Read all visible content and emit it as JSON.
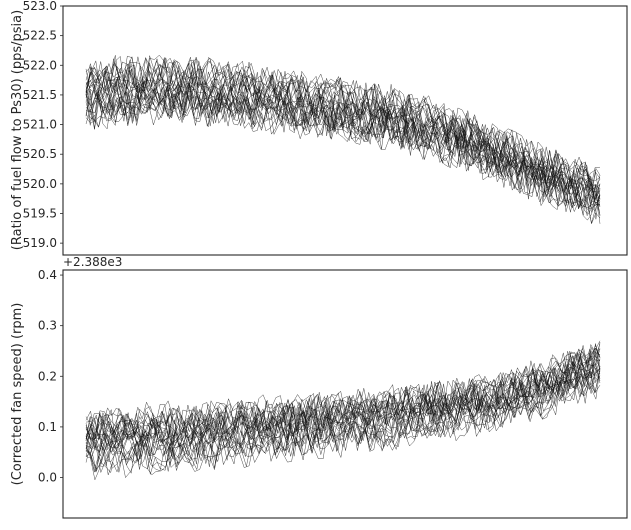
{
  "chart_data": [
    {
      "type": "line",
      "title": "",
      "xlabel": "",
      "ylabel": "(Ratio of fuel flow to Ps30) (pps/psia)",
      "ylim": [
        518.8,
        523.0
      ],
      "yticks": [
        519.0,
        519.5,
        520.0,
        520.5,
        521.0,
        521.5,
        522.0,
        522.5,
        523.0
      ],
      "ytick_labels": [
        "519.0",
        "519.5",
        "520.0",
        "520.5",
        "521.0",
        "521.5",
        "522.0",
        "522.5",
        "523.0"
      ],
      "offset_text": "",
      "x_tick_labels_visible": false,
      "grid": false,
      "legend": "none",
      "line_color": "#111111",
      "series_count": 30,
      "points_per_series": 128,
      "trend": {
        "x": [
          0,
          0.15,
          0.3,
          0.45,
          0.6,
          0.75,
          0.9,
          1.0
        ],
        "y": [
          521.5,
          521.6,
          521.5,
          521.3,
          521.1,
          520.7,
          520.1,
          519.8
        ]
      },
      "start_spread": 0.35,
      "noise": 0.32,
      "seed": 7
    },
    {
      "type": "line",
      "title": "",
      "xlabel": "",
      "ylabel": "(Corrected fan speed) (rpm)",
      "ylim": [
        -0.08,
        0.41
      ],
      "yticks": [
        0.0,
        0.1,
        0.2,
        0.3,
        0.4
      ],
      "ytick_labels": [
        "0.0",
        "0.1",
        "0.2",
        "0.3",
        "0.4"
      ],
      "offset_text": "+2.388e3",
      "x_tick_labels_visible": false,
      "grid": false,
      "legend": "none",
      "line_color": "#111111",
      "series_count": 30,
      "points_per_series": 128,
      "trend": {
        "x": [
          0,
          0.2,
          0.4,
          0.6,
          0.8,
          0.9,
          1.0
        ],
        "y": [
          0.07,
          0.08,
          0.1,
          0.12,
          0.15,
          0.18,
          0.22
        ]
      },
      "start_spread": 0.045,
      "noise": 0.035,
      "seed": 19
    }
  ]
}
